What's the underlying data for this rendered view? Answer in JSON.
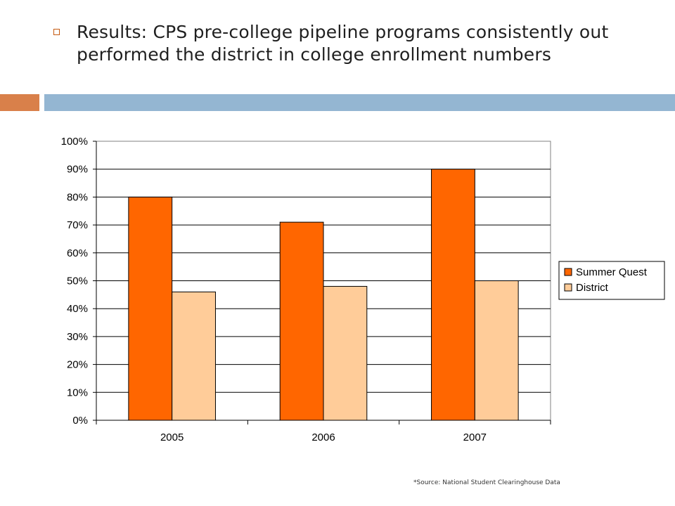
{
  "slide": {
    "title": "Results:  CPS pre-college pipeline programs consistently out performed the district in college enrollment numbers",
    "source_note": "*Source: National Student Clearinghouse Data",
    "accent_colors": {
      "left_band": "#d9804a",
      "right_band": "#94b6d2",
      "bullet": "#c55a11"
    },
    "bullet_icon": "hollow-square"
  },
  "chart_data": {
    "type": "bar",
    "categories": [
      "2005",
      "2006",
      "2007"
    ],
    "series": [
      {
        "name": "Summer Quest",
        "values": [
          80,
          71,
          90
        ],
        "color": "#ff6600"
      },
      {
        "name": "District",
        "values": [
          46,
          48,
          50
        ],
        "color": "#ffcc99"
      }
    ],
    "ylim": [
      0,
      100
    ],
    "yticks": [
      "0%",
      "10%",
      "20%",
      "30%",
      "40%",
      "50%",
      "60%",
      "70%",
      "80%",
      "90%",
      "100%"
    ],
    "grid": true,
    "legend_position": "right"
  }
}
